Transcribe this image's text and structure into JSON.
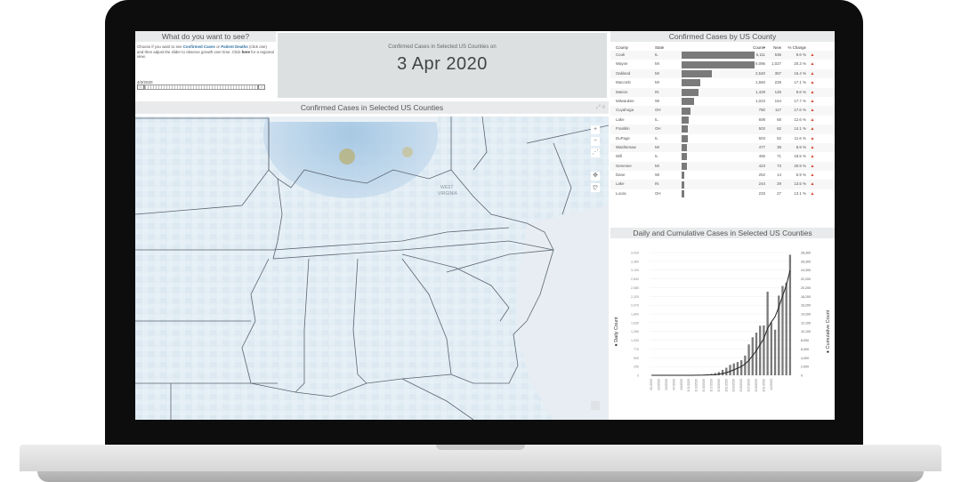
{
  "control": {
    "title": "What do you want to see?",
    "line1": "Choose if you want to see ",
    "link1": "Confirmed Cases",
    "or": " or ",
    "link2": "Patient Deaths",
    "line2": " (click one) and then adjust the slider to observe growth over time. Click ",
    "here": "here",
    "line3": " for a regional view.",
    "date": "4/3/2020"
  },
  "date_card": {
    "subtitle": "Confirmed Cases in Selected US Counties on",
    "date": "3 Apr 2020"
  },
  "map": {
    "title": "Confirmed Cases in Selected US Counties",
    "labels": [
      "WEST",
      "VIRGINIA"
    ]
  },
  "table": {
    "title": "Confirmed Cases by US County",
    "headers": [
      "County",
      "State",
      "Count",
      "New",
      "% Change"
    ],
    "rows": [
      {
        "county": "Cook",
        "state": "IL",
        "count": "6,111",
        "new": "536",
        "pct": "9.6 %",
        "value": 6111
      },
      {
        "county": "Wayne",
        "state": "MI",
        "count": "6,096",
        "new": "1,027",
        "pct": "20.3 %",
        "value": 6096
      },
      {
        "county": "Oakland",
        "state": "MI",
        "count": "2,540",
        "new": "357",
        "pct": "16.4 %",
        "value": 2540
      },
      {
        "county": "Macomb",
        "state": "MI",
        "count": "1,560",
        "new": "228",
        "pct": "17.1 %",
        "value": 1560
      },
      {
        "county": "Marion",
        "state": "IN",
        "count": "1,429",
        "new": "125",
        "pct": "9.6 %",
        "value": 1429
      },
      {
        "county": "Milwaukee",
        "state": "WI",
        "count": "1,023",
        "new": "154",
        "pct": "17.7 %",
        "value": 1023
      },
      {
        "county": "Cuyahoga",
        "state": "OH",
        "count": "780",
        "new": "117",
        "pct": "17.6 %",
        "value": 780
      },
      {
        "county": "Lake",
        "state": "IL",
        "count": "608",
        "new": "68",
        "pct": "12.6 %",
        "value": 608
      },
      {
        "county": "Franklin",
        "state": "OH",
        "count": "503",
        "new": "62",
        "pct": "14.1 %",
        "value": 503
      },
      {
        "county": "DuPage",
        "state": "IL",
        "count": "503",
        "new": "52",
        "pct": "11.6 %",
        "value": 503
      },
      {
        "county": "Washtenaw",
        "state": "MI",
        "count": "477",
        "new": "39",
        "pct": "8.9 %",
        "value": 477
      },
      {
        "county": "Will",
        "state": "IL",
        "count": "455",
        "new": "71",
        "pct": "18.5 %",
        "value": 455
      },
      {
        "county": "Genesee",
        "state": "MI",
        "count": "423",
        "new": "73",
        "pct": "20.9 %",
        "value": 423
      },
      {
        "county": "Dane",
        "state": "WI",
        "count": "252",
        "new": "14",
        "pct": "5.9 %",
        "value": 252
      },
      {
        "county": "Lake",
        "state": "IN",
        "count": "244",
        "new": "29",
        "pct": "13.5 %",
        "value": 244
      },
      {
        "county": "Lucas",
        "state": "OH",
        "count": "233",
        "new": "27",
        "pct": "13.1 %",
        "value": 233
      }
    ]
  },
  "chart_data": {
    "type": "bar",
    "title": "Daily and Cumulative Cases in Selected US Counties",
    "ylabel": "Daily Count",
    "y2label": "Cumulative Count",
    "ylim": [
      0,
      3420
    ],
    "y2lim": [
      0,
      28300
    ],
    "yticks": [
      "0",
      "250",
      "500",
      "770",
      "1,030",
      "1,280",
      "1,530",
      "1,800",
      "2,070",
      "2,320",
      "2,580",
      "2,840",
      "3,100",
      "3,360",
      "3,420"
    ],
    "y2ticks": [
      "0",
      "2,000",
      "4,000",
      "6,000",
      "8,000",
      "10,100",
      "12,100",
      "14,200",
      "16,200",
      "18,200",
      "20,200",
      "22,200",
      "24,300",
      "26,300",
      "28,300"
    ],
    "categories": [
      "3/1/2020",
      "3/3/2020",
      "3/5/2020",
      "3/7/2020",
      "3/9/2020",
      "3/11/2020",
      "3/13/2020",
      "3/15/2020",
      "3/17/2020",
      "3/19/2020",
      "3/21/2020",
      "3/23/2020",
      "3/25/2020",
      "3/27/2020",
      "3/29/2020",
      "3/31/2020",
      "4/2/2020"
    ],
    "daily": [
      0,
      0,
      0,
      0,
      0,
      0,
      0,
      0,
      0,
      0,
      2,
      4,
      6,
      10,
      20,
      30,
      40,
      60,
      90,
      150,
      210,
      290,
      330,
      370,
      420,
      550,
      860,
      1060,
      1190,
      1380,
      1390,
      2330,
      1470,
      1270,
      2220,
      2490,
      2580,
      3360
    ],
    "cumulative": [
      0,
      0,
      0,
      0,
      0,
      0,
      0,
      0,
      0,
      0,
      2,
      6,
      12,
      22,
      42,
      72,
      112,
      172,
      262,
      412,
      622,
      912,
      1242,
      1612,
      2032,
      2582,
      3442,
      4502,
      5692,
      7072,
      8462,
      10792,
      12262,
      13532,
      15752,
      18242,
      20822,
      24182
    ]
  },
  "colors": {
    "bar": "#7a7a7a",
    "line": "#222222",
    "triangle": "#d0442b",
    "header_bg": "#e8eaeb",
    "map_bg": "#eaf1f6",
    "link": "#2f6f9f"
  }
}
